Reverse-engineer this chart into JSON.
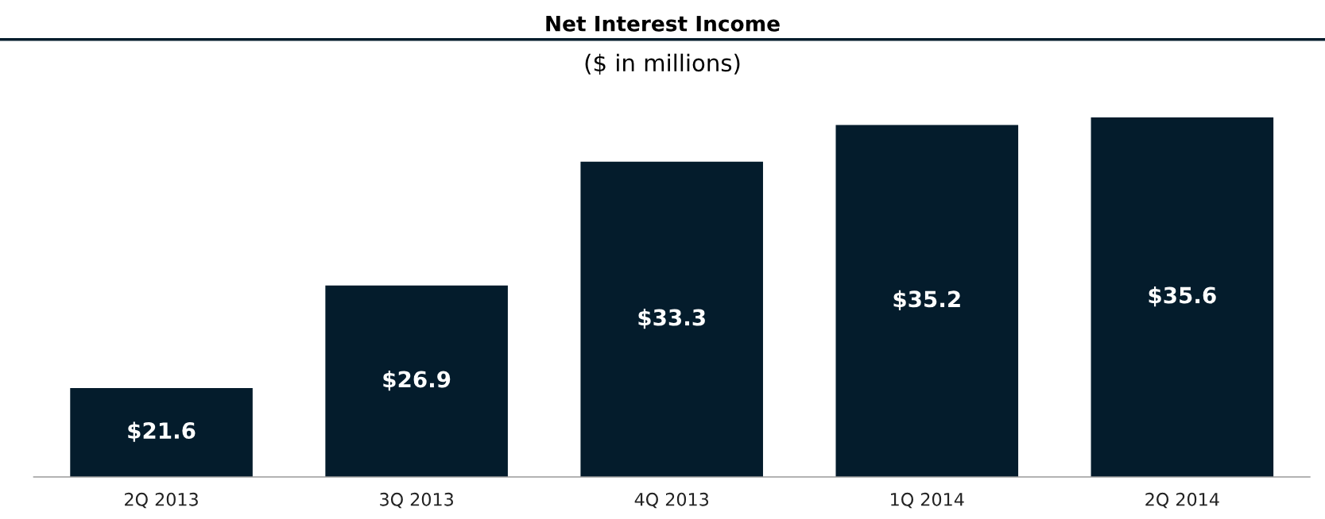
{
  "chart_data": {
    "type": "bar",
    "title": "Net Interest Income",
    "subtitle": "($ in millions)",
    "categories": [
      "2Q 2013",
      "3Q 2013",
      "4Q 2013",
      "1Q 2014",
      "2Q 2014"
    ],
    "values": [
      21.6,
      26.9,
      33.3,
      35.2,
      35.6
    ],
    "color": "#041c2c",
    "value_labels": [
      "$21.6",
      "$26.9",
      "$33.3",
      "$35.2",
      "$35.6"
    ],
    "ylim": [
      17,
      35.6
    ],
    "grid": false,
    "tick_labels": "x"
  }
}
